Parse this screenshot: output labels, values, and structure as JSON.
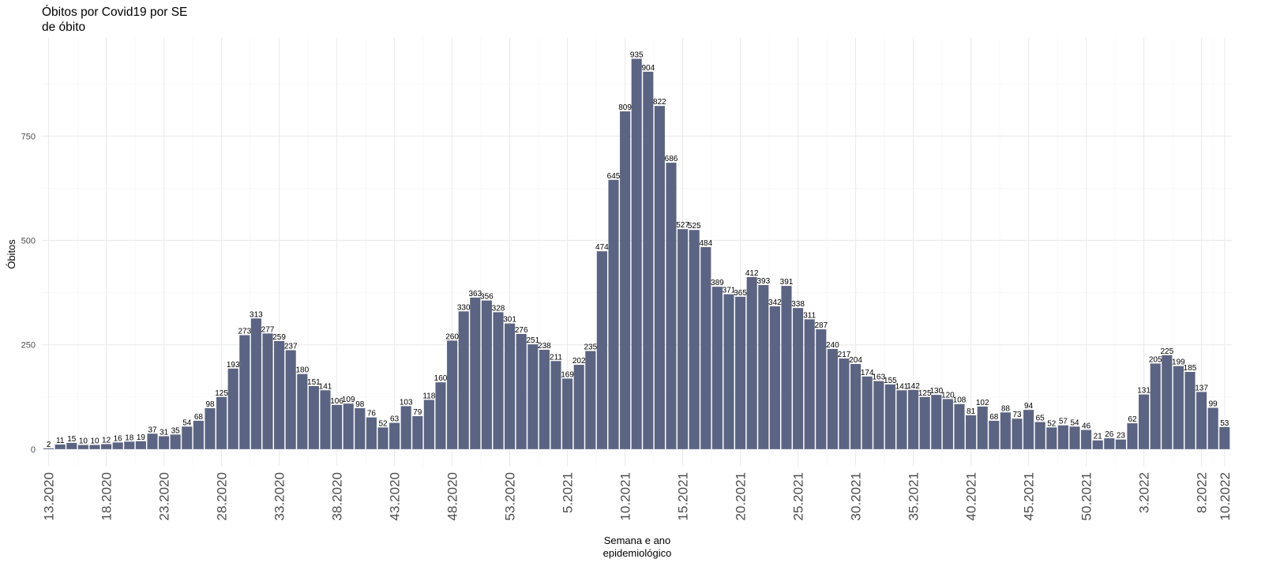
{
  "title_line1": "Óbitos por Covid19 por SE",
  "title_line2": "de óbito",
  "colors": {
    "bar": "#5b6482",
    "grid": "#ebebeb",
    "gridMinor": "#f3f3f3"
  },
  "chart_data": {
    "type": "bar",
    "title": "Óbitos por Covid19 por SE de óbito",
    "xlabel": "Semana e ano epidemiológico",
    "ylabel": "Óbitos",
    "ylim": [
      -40,
      985
    ],
    "yticks": [
      0,
      250,
      500,
      750
    ],
    "grid": true,
    "first_category": "13.2020",
    "last_category": "10.2022",
    "xtick_labels": [
      "13.2020",
      "18.2020",
      "23.2020",
      "28.2020",
      "33.2020",
      "38.2020",
      "43.2020",
      "48.2020",
      "53.2020",
      "5.2021",
      "10.2021",
      "15.2021",
      "20.2021",
      "25.2021",
      "30.2021",
      "35.2021",
      "40.2021",
      "45.2021",
      "50.2021",
      "3.2022",
      "8.2022",
      "10.2022"
    ],
    "xtick_positions": [
      0,
      5,
      10,
      15,
      20,
      25,
      30,
      35,
      40,
      45,
      50,
      55,
      60,
      65,
      70,
      75,
      80,
      85,
      90,
      95,
      100,
      102
    ],
    "values": [
      2,
      11,
      15,
      10,
      10,
      12,
      16,
      18,
      19,
      37,
      31,
      35,
      54,
      68,
      98,
      125,
      193,
      273,
      313,
      277,
      259,
      237,
      180,
      151,
      141,
      106,
      109,
      98,
      76,
      52,
      63,
      103,
      79,
      118,
      160,
      260,
      330,
      363,
      356,
      328,
      301,
      276,
      251,
      238,
      211,
      169,
      202,
      235,
      474,
      645,
      809,
      935,
      904,
      822,
      686,
      527,
      525,
      484,
      389,
      371,
      365,
      412,
      393,
      342,
      391,
      338,
      311,
      287,
      240,
      217,
      204,
      174,
      163,
      155,
      141,
      142,
      125,
      130,
      120,
      108,
      81,
      102,
      68,
      88,
      73,
      94,
      65,
      52,
      57,
      54,
      46,
      21,
      26,
      23,
      62,
      131,
      205,
      225,
      199,
      185,
      137,
      99,
      53
    ]
  }
}
